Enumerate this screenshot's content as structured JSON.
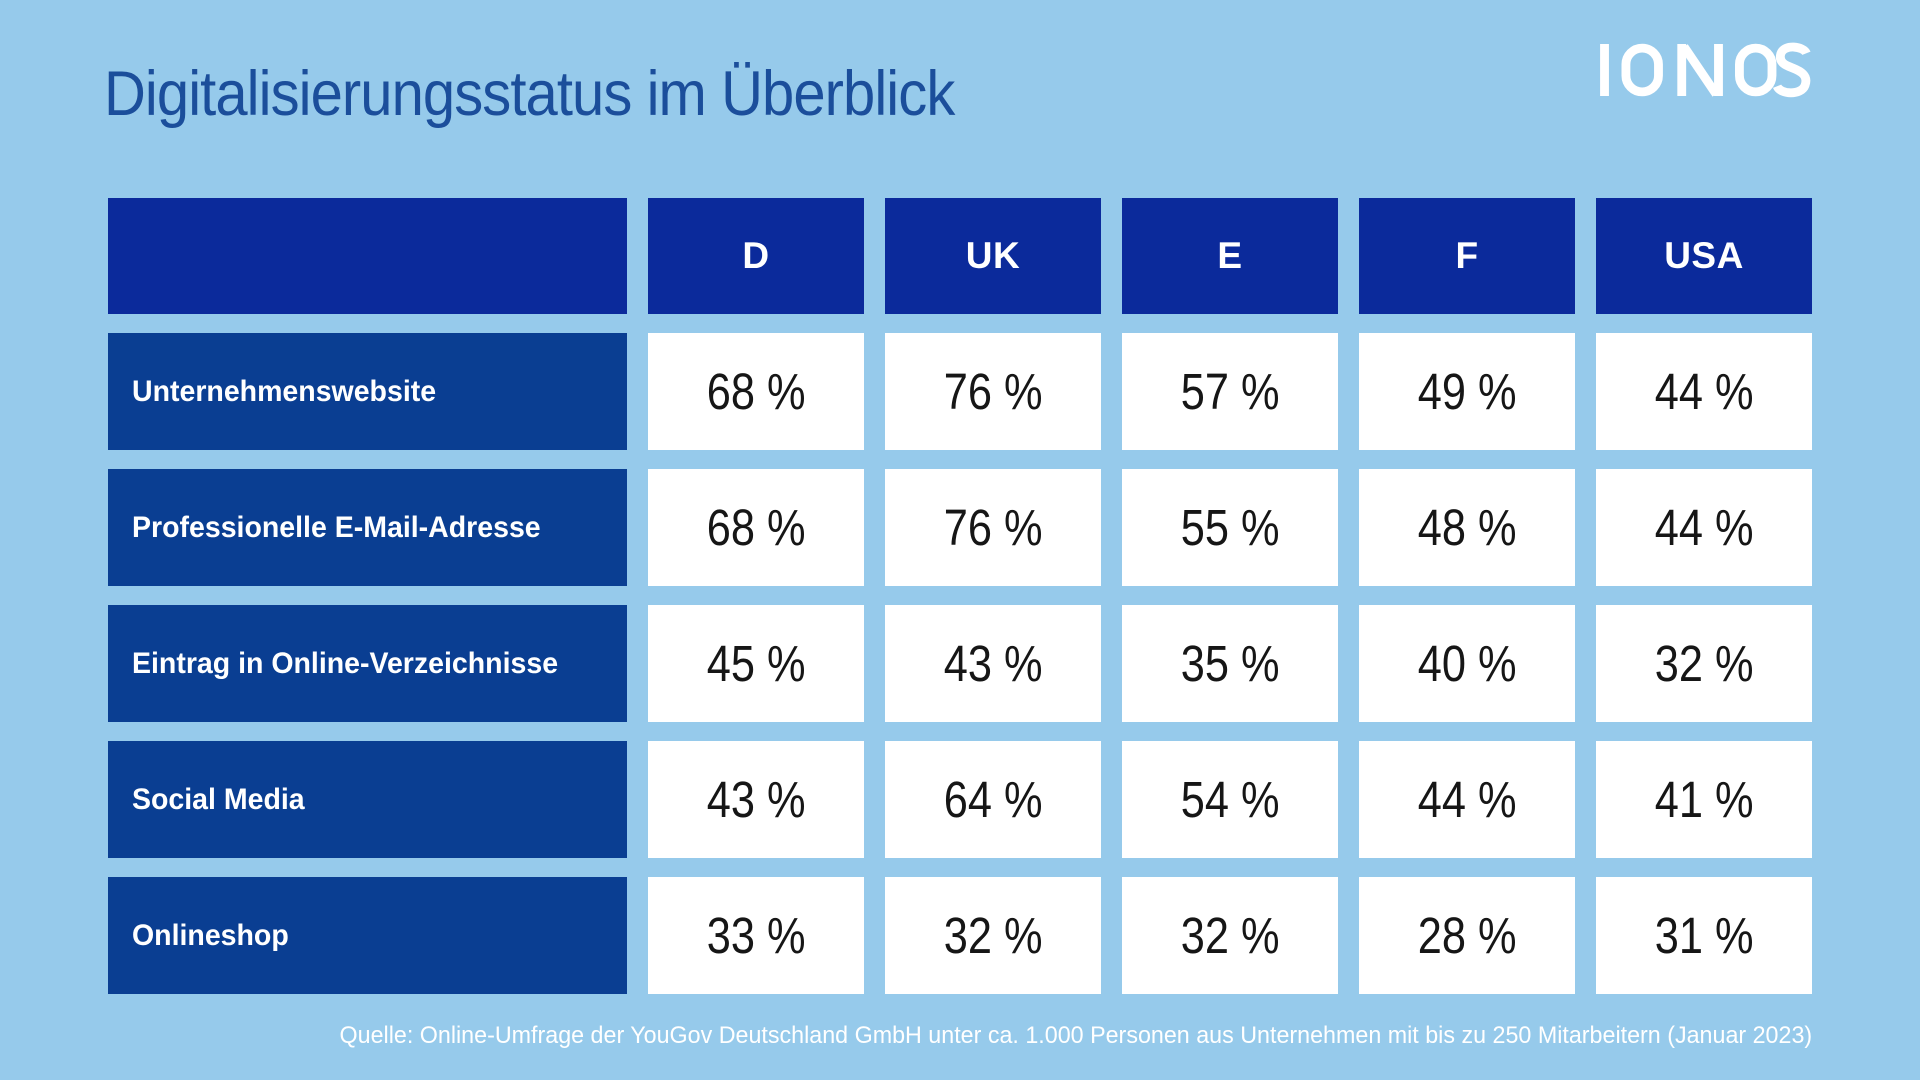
{
  "page": {
    "title": "Digitalisierungsstatus im Überblick",
    "logo": "IONOS",
    "source": "Quelle: Online-Umfrage der YouGov Deutschland GmbH unter ca. 1.000 Personen aus Unternehmen mit bis zu 250 Mitarbeitern (Januar 2023)"
  },
  "colors": {
    "background": "#96CAEB",
    "header_blue": "#0B2A9B",
    "row_label_blue": "#0A3E92",
    "title_blue": "#1B4E9B",
    "cell_background": "#FFFFFF",
    "cell_text": "#161616",
    "logo_white": "#FFFFFF"
  },
  "chart_data": {
    "type": "table",
    "title": "Digitalisierungsstatus im Überblick",
    "columns": [
      "D",
      "UK",
      "E",
      "F",
      "USA"
    ],
    "value_suffix": " %",
    "rows": [
      {
        "label": "Unternehmenswebsite",
        "values": [
          68,
          76,
          57,
          49,
          44
        ],
        "display": [
          "68 %",
          "76 %",
          "57 %",
          "49 %",
          "44 %"
        ]
      },
      {
        "label": "Professionelle E-Mail-Adresse",
        "values": [
          68,
          76,
          55,
          48,
          44
        ],
        "display": [
          "68 %",
          "76 %",
          "55 %",
          "48 %",
          "44 %"
        ]
      },
      {
        "label": "Eintrag in Online-Verzeichnisse",
        "values": [
          45,
          43,
          35,
          40,
          32
        ],
        "display": [
          "45 %",
          "43 %",
          "35 %",
          "40 %",
          "32 %"
        ]
      },
      {
        "label": "Social Media",
        "values": [
          43,
          64,
          54,
          44,
          41
        ],
        "display": [
          "43 %",
          "64 %",
          "54 %",
          "44 %",
          "41 %"
        ]
      },
      {
        "label": "Onlineshop",
        "values": [
          33,
          32,
          32,
          28,
          31
        ],
        "display": [
          "33 %",
          "32 %",
          "32 %",
          "28 %",
          "31 %"
        ]
      }
    ]
  }
}
